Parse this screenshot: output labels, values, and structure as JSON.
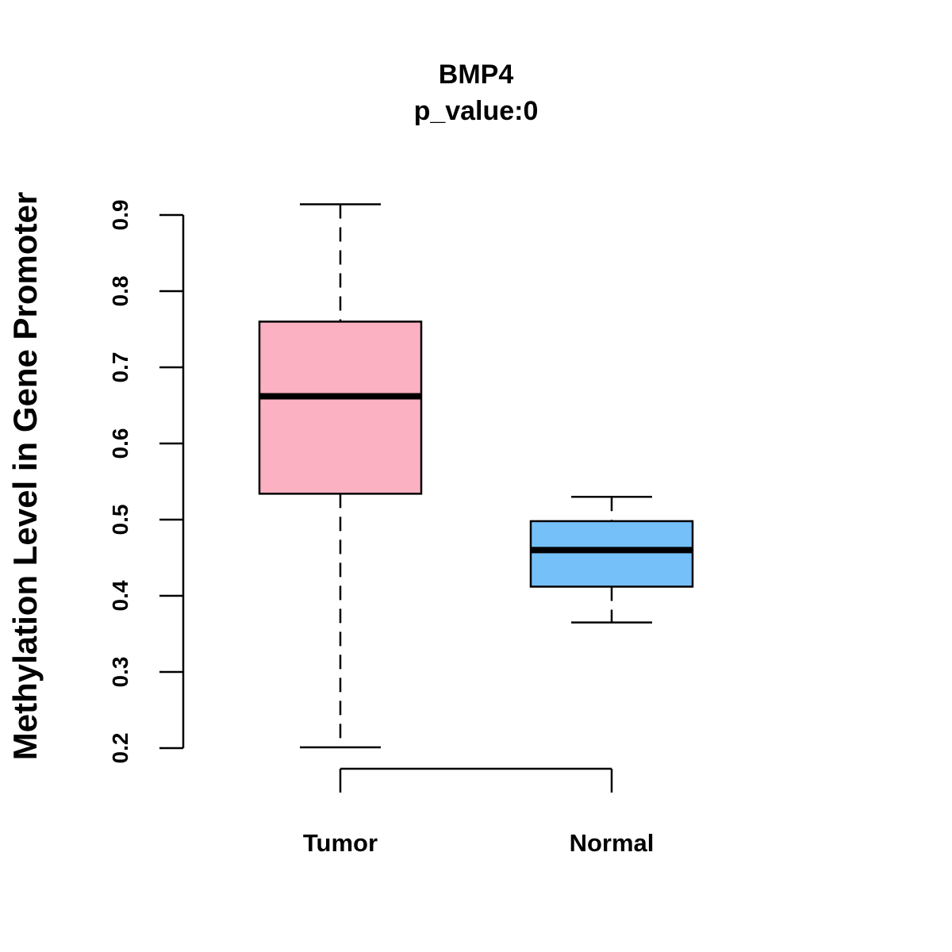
{
  "chart_data": {
    "type": "boxplot",
    "title": "BMP4",
    "subtitle": "p_value:0",
    "xlabel": "",
    "ylabel": "Methylation Level in Gene Promoter",
    "ylim": [
      0.2,
      0.9
    ],
    "yticks": [
      0.2,
      0.3,
      0.4,
      0.5,
      0.6,
      0.7,
      0.8,
      0.9
    ],
    "categories": [
      "Tumor",
      "Normal"
    ],
    "boxes": [
      {
        "name": "Tumor",
        "whisker_low": 0.201,
        "q1": 0.534,
        "median": 0.662,
        "q3": 0.76,
        "whisker_high": 0.914,
        "color": "#fbb1c2"
      },
      {
        "name": "Normal",
        "whisker_low": 0.365,
        "q1": 0.412,
        "median": 0.46,
        "q3": 0.498,
        "whisker_high": 0.53,
        "color": "#76c0f9"
      }
    ],
    "grid": false,
    "legend": "none"
  }
}
